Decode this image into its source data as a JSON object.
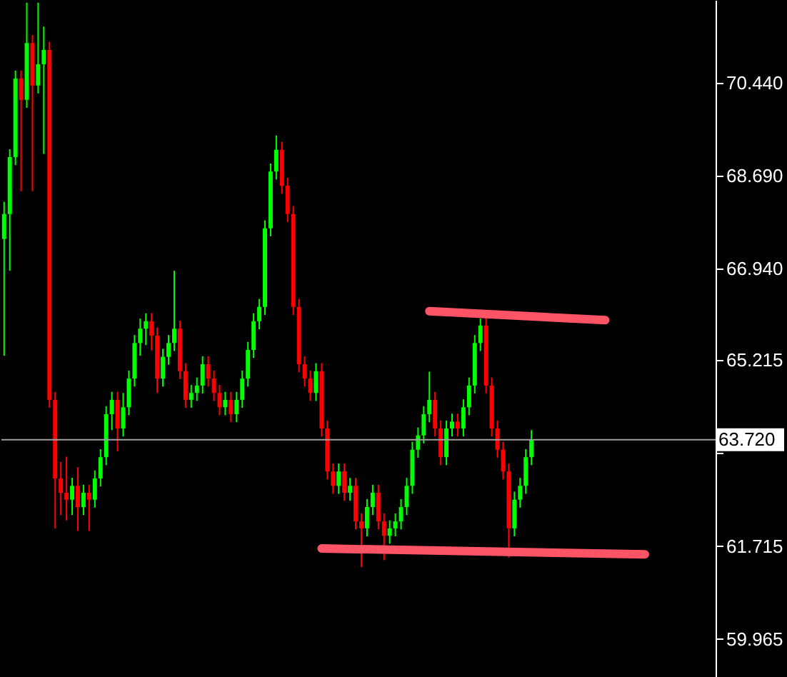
{
  "chart_data": {
    "type": "candlestick",
    "categories": [
      null,
      null,
      null,
      null,
      null,
      null,
      null,
      null,
      null,
      null,
      null,
      null,
      null,
      null,
      null,
      null,
      null,
      null,
      null,
      null,
      null,
      null,
      null,
      null,
      null,
      null,
      null,
      null,
      null,
      null,
      null,
      null,
      null,
      null,
      null,
      null,
      null,
      null,
      null,
      null,
      null,
      null,
      null,
      null,
      null,
      null,
      null,
      null,
      null,
      null,
      null,
      null,
      null,
      null,
      null,
      null,
      null,
      null,
      null,
      null,
      null,
      null,
      null,
      null,
      null,
      null,
      null,
      null,
      null,
      null,
      null,
      null,
      null,
      null,
      null,
      null,
      null,
      null,
      null,
      null,
      null,
      null,
      null,
      null,
      null,
      null,
      null,
      null,
      null,
      null,
      null,
      null,
      null,
      null,
      null,
      null,
      null,
      null,
      null,
      null,
      null,
      null,
      null,
      null,
      null,
      null,
      null,
      null,
      null,
      null,
      null,
      null,
      null,
      null,
      null,
      null,
      null,
      null,
      null,
      null,
      null,
      null,
      null,
      null,
      null,
      null
    ],
    "ohlc": [
      [
        67.5,
        68.2,
        65.3,
        67.97
      ],
      [
        67.97,
        69.19,
        66.9,
        69.04
      ],
      [
        69.04,
        70.67,
        68.89,
        70.52
      ],
      [
        70.52,
        70.67,
        68.4,
        70.12
      ],
      [
        70.12,
        71.95,
        69.97,
        71.19
      ],
      [
        71.19,
        71.34,
        68.4,
        70.39
      ],
      [
        70.39,
        71.95,
        70.24,
        70.79
      ],
      [
        70.79,
        71.5,
        69.1,
        71.06
      ],
      [
        71.06,
        71.21,
        64.32,
        64.47
      ],
      [
        64.47,
        64.62,
        62.05,
        62.99
      ],
      [
        62.99,
        63.3,
        62.3,
        62.72
      ],
      [
        62.72,
        63.4,
        62.2,
        62.59
      ],
      [
        62.59,
        63.0,
        62.3,
        62.85
      ],
      [
        62.85,
        63.2,
        62.0,
        62.45
      ],
      [
        62.45,
        62.87,
        62.3,
        62.72
      ],
      [
        62.72,
        62.87,
        62.0,
        62.59
      ],
      [
        62.59,
        63.14,
        62.44,
        62.99
      ],
      [
        62.99,
        63.54,
        62.84,
        63.39
      ],
      [
        63.39,
        64.35,
        63.24,
        64.2
      ],
      [
        64.2,
        64.62,
        63.9,
        64.47
      ],
      [
        64.47,
        64.62,
        63.5,
        63.93
      ],
      [
        63.93,
        64.6,
        63.78,
        64.33
      ],
      [
        64.33,
        65.02,
        64.18,
        64.87
      ],
      [
        64.87,
        65.69,
        64.72,
        65.54
      ],
      [
        65.54,
        66.0,
        65.3,
        65.81
      ],
      [
        65.81,
        66.1,
        65.5,
        65.95
      ],
      [
        65.95,
        66.1,
        65.4,
        65.68
      ],
      [
        65.68,
        65.83,
        64.6,
        64.87
      ],
      [
        64.87,
        65.43,
        64.72,
        65.28
      ],
      [
        65.28,
        65.69,
        65.13,
        65.54
      ],
      [
        65.54,
        66.9,
        65.39,
        65.81
      ],
      [
        65.81,
        65.96,
        64.86,
        65.01
      ],
      [
        65.01,
        65.16,
        64.32,
        64.47
      ],
      [
        64.47,
        64.75,
        64.32,
        64.6
      ],
      [
        64.6,
        64.89,
        64.45,
        64.74
      ],
      [
        64.74,
        65.29,
        64.59,
        65.14
      ],
      [
        65.14,
        65.29,
        64.72,
        64.87
      ],
      [
        64.87,
        65.02,
        64.45,
        64.6
      ],
      [
        64.6,
        64.75,
        64.18,
        64.33
      ],
      [
        64.33,
        64.62,
        64.18,
        64.47
      ],
      [
        64.47,
        64.62,
        64.05,
        64.2
      ],
      [
        64.2,
        64.62,
        64.05,
        64.47
      ],
      [
        64.47,
        65.02,
        64.32,
        64.87
      ],
      [
        64.87,
        65.56,
        64.72,
        65.41
      ],
      [
        65.41,
        66.1,
        65.26,
        65.95
      ],
      [
        65.95,
        66.37,
        65.8,
        66.22
      ],
      [
        66.22,
        67.85,
        66.07,
        67.7
      ],
      [
        67.7,
        68.92,
        67.55,
        68.77
      ],
      [
        68.77,
        69.45,
        68.62,
        69.18
      ],
      [
        69.18,
        69.33,
        68.35,
        68.5
      ],
      [
        68.5,
        68.65,
        67.82,
        67.97
      ],
      [
        67.97,
        68.12,
        66.07,
        66.22
      ],
      [
        66.22,
        66.37,
        64.99,
        65.14
      ],
      [
        65.14,
        65.29,
        64.72,
        64.87
      ],
      [
        64.87,
        65.02,
        64.45,
        64.6
      ],
      [
        64.6,
        65.16,
        64.45,
        65.01
      ],
      [
        65.01,
        65.16,
        63.78,
        63.93
      ],
      [
        63.93,
        64.08,
        62.97,
        63.12
      ],
      [
        63.12,
        63.27,
        62.7,
        62.85
      ],
      [
        62.85,
        63.27,
        62.7,
        63.12
      ],
      [
        63.12,
        63.27,
        62.57,
        62.72
      ],
      [
        62.72,
        63.0,
        62.57,
        62.85
      ],
      [
        62.85,
        63.0,
        62.03,
        62.18
      ],
      [
        62.18,
        62.33,
        61.32,
        62.05
      ],
      [
        62.05,
        62.6,
        61.9,
        62.45
      ],
      [
        62.45,
        62.87,
        62.3,
        62.72
      ],
      [
        62.72,
        62.87,
        62.03,
        62.18
      ],
      [
        62.18,
        62.33,
        61.45,
        61.91
      ],
      [
        61.91,
        62.2,
        61.76,
        62.05
      ],
      [
        62.05,
        62.33,
        61.9,
        62.18
      ],
      [
        62.18,
        62.6,
        62.03,
        62.45
      ],
      [
        62.45,
        63.0,
        62.3,
        62.85
      ],
      [
        62.85,
        63.68,
        62.7,
        63.53
      ],
      [
        63.53,
        63.95,
        63.38,
        63.8
      ],
      [
        63.8,
        64.35,
        63.65,
        64.2
      ],
      [
        64.2,
        65.0,
        64.05,
        64.47
      ],
      [
        64.47,
        64.62,
        63.78,
        63.93
      ],
      [
        63.93,
        64.08,
        63.24,
        63.39
      ],
      [
        63.39,
        64.08,
        63.24,
        63.93
      ],
      [
        63.93,
        64.21,
        63.78,
        64.06
      ],
      [
        64.06,
        64.21,
        63.78,
        63.93
      ],
      [
        63.93,
        64.48,
        63.78,
        64.33
      ],
      [
        64.33,
        64.89,
        64.18,
        64.74
      ],
      [
        64.74,
        65.69,
        64.59,
        65.54
      ],
      [
        65.54,
        66.0,
        65.39,
        65.87
      ],
      [
        65.87,
        66.02,
        64.59,
        64.74
      ],
      [
        64.74,
        64.89,
        63.78,
        63.93
      ],
      [
        63.93,
        64.08,
        63.38,
        63.53
      ],
      [
        63.53,
        63.68,
        62.97,
        63.12
      ],
      [
        63.12,
        63.27,
        61.5,
        62.05
      ],
      [
        62.05,
        62.74,
        61.9,
        62.59
      ],
      [
        62.59,
        63.0,
        62.44,
        62.85
      ],
      [
        62.85,
        63.54,
        62.7,
        63.39
      ],
      [
        63.39,
        63.9,
        63.24,
        63.72
      ],
      null,
      null,
      null,
      null,
      null,
      null,
      null,
      null,
      null,
      null,
      null,
      null,
      null,
      null,
      null,
      null,
      null,
      null,
      null,
      null,
      null,
      null,
      null,
      null,
      null,
      null,
      null,
      null,
      null,
      null,
      null,
      null
    ],
    "colors": [
      "#00ff00",
      "#00ff00",
      "#00ff00",
      "#ff0000",
      "#00ff00",
      "#ff0000",
      "#00ff00",
      "#00ff00",
      "#ff0000",
      "#ff0000",
      "#ff0000",
      "#ff0000",
      "#00ff00",
      "#ff0000",
      "#00ff00",
      "#ff0000",
      "#00ff00",
      "#00ff00",
      "#00ff00",
      "#00ff00",
      "#ff0000",
      "#00ff00",
      "#00ff00",
      "#00ff00",
      "#00ff00",
      "#00ff00",
      "#ff0000",
      "#ff0000",
      "#00ff00",
      "#00ff00",
      "#00ff00",
      "#ff0000",
      "#ff0000",
      "#00ff00",
      "#00ff00",
      "#00ff00",
      "#ff0000",
      "#ff0000",
      "#ff0000",
      "#00ff00",
      "#ff0000",
      "#00ff00",
      "#00ff00",
      "#00ff00",
      "#00ff00",
      "#00ff00",
      "#00ff00",
      "#00ff00",
      "#00ff00",
      "#ff0000",
      "#ff0000",
      "#ff0000",
      "#ff0000",
      "#ff0000",
      "#ff0000",
      "#00ff00",
      "#ff0000",
      "#ff0000",
      "#ff0000",
      "#00ff00",
      "#ff0000",
      "#00ff00",
      "#ff0000",
      "#ff0000",
      "#00ff00",
      "#00ff00",
      "#ff0000",
      "#ff0000",
      "#00ff00",
      "#00ff00",
      "#00ff00",
      "#00ff00",
      "#00ff00",
      "#00ff00",
      "#00ff00",
      "#00ff00",
      "#ff0000",
      "#ff0000",
      "#00ff00",
      "#00ff00",
      "#ff0000",
      "#00ff00",
      "#00ff00",
      "#00ff00",
      "#00ff00",
      "#ff0000",
      "#ff0000",
      "#ff0000",
      "#ff0000",
      "#ff0000",
      "#00ff00",
      "#00ff00",
      "#00ff00",
      "#00ff00",
      null,
      null,
      null,
      null,
      null,
      null,
      null,
      null,
      null,
      null,
      null,
      null,
      null,
      null,
      null,
      null,
      null,
      null,
      null,
      null,
      null,
      null,
      null,
      null,
      null,
      null,
      null,
      null,
      null,
      null,
      null,
      null
    ],
    "series": [
      {
        "type": "line",
        "color": "#ff5466",
        "values": [
          null,
          null,
          null,
          null,
          null,
          null,
          null,
          null,
          null,
          null,
          null,
          null,
          null,
          null,
          null,
          null,
          null,
          null,
          null,
          null,
          null,
          null,
          null,
          null,
          null,
          null,
          null,
          null,
          null,
          null,
          null,
          null,
          null,
          null,
          null,
          null,
          null,
          null,
          null,
          null,
          null,
          null,
          null,
          null,
          null,
          null,
          null,
          null,
          null,
          null,
          null,
          null,
          null,
          null,
          null,
          null,
          null,
          null,
          null,
          null,
          null,
          null,
          null,
          null,
          null,
          null,
          null,
          null,
          null,
          null,
          null,
          null,
          null,
          null,
          null,
          66.14,
          null,
          null,
          null,
          null,
          null,
          null,
          null,
          null,
          null,
          null,
          null,
          null,
          null,
          null,
          null,
          null,
          null,
          null,
          null,
          null,
          null,
          null,
          null,
          null,
          null,
          null,
          null,
          null,
          null,
          null,
          65.97,
          null,
          null,
          null,
          null,
          null,
          null,
          null,
          null,
          null,
          null,
          null,
          null,
          null,
          null,
          null,
          null,
          null,
          null,
          null
        ]
      },
      {
        "type": "line",
        "color": "#ff5466",
        "values": [
          null,
          null,
          null,
          null,
          null,
          null,
          null,
          null,
          null,
          null,
          null,
          null,
          null,
          null,
          null,
          null,
          null,
          null,
          null,
          null,
          null,
          null,
          null,
          null,
          null,
          null,
          null,
          null,
          null,
          null,
          null,
          null,
          null,
          null,
          null,
          null,
          null,
          null,
          null,
          null,
          null,
          null,
          null,
          null,
          null,
          null,
          null,
          null,
          null,
          null,
          null,
          null,
          null,
          null,
          null,
          null,
          61.67,
          null,
          null,
          null,
          null,
          null,
          null,
          null,
          null,
          null,
          null,
          null,
          null,
          null,
          null,
          null,
          null,
          null,
          null,
          null,
          null,
          null,
          null,
          null,
          null,
          null,
          null,
          null,
          null,
          null,
          null,
          null,
          null,
          null,
          null,
          null,
          null,
          null,
          null,
          null,
          null,
          null,
          null,
          null,
          null,
          null,
          null,
          null,
          null,
          null,
          null,
          null,
          null,
          null,
          null,
          null,
          null,
          61.56,
          null,
          null,
          null,
          null,
          null,
          null,
          null,
          null,
          null,
          null,
          null,
          null
        ]
      }
    ],
    "ylim": [
      59.25,
      72.0
    ],
    "yticks": [
      {
        "value": 59.965,
        "label": "59.965"
      },
      {
        "value": 61.715,
        "label": "61.715"
      },
      {
        "value": 63.465,
        "label": null
      },
      {
        "value": 65.215,
        "label": "65.215"
      },
      {
        "value": 66.94,
        "label": "66.940"
      },
      {
        "value": 68.69,
        "label": "68.690"
      },
      {
        "value": 70.44,
        "label": "70.440"
      }
    ],
    "tick_labels": "y",
    "ref_lines": [
      {
        "axis": "y",
        "value": 63.72,
        "label": "63.720",
        "color": "#a0a0a0"
      }
    ]
  }
}
